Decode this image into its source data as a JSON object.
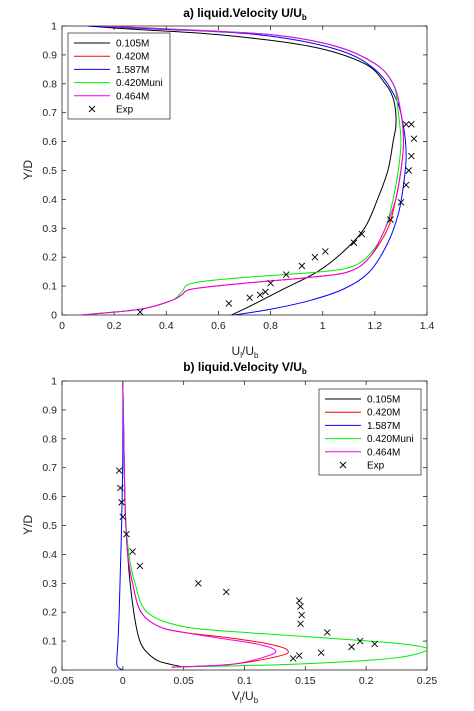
{
  "chart_data": [
    {
      "type": "line",
      "title": "a) liquid.Velocity U/U",
      "title_sub": "b",
      "xlabel": "U",
      "xlabel_sub1": "l",
      "xlabel_mid": "/U",
      "xlabel_sub2": "b",
      "ylabel": "Y/D",
      "xlim": [
        0,
        1.4
      ],
      "ylim": [
        0,
        1
      ],
      "xticks": [
        0,
        0.2,
        0.4,
        0.6,
        0.8,
        1,
        1.2,
        1.4
      ],
      "xtick_labels": [
        "0",
        "0.2",
        "0.4",
        "0.6",
        "0.8",
        "1",
        "1.2",
        "1.4"
      ],
      "yticks": [
        0,
        0.1,
        0.2,
        0.3,
        0.4,
        0.5,
        0.6,
        0.7,
        0.8,
        0.9,
        1
      ],
      "ytick_labels": [
        "0",
        "0.1",
        "0.2",
        "0.3",
        "0.4",
        "0.5",
        "0.6",
        "0.7",
        "0.8",
        "0.9",
        "1"
      ],
      "legend_position": "top-left",
      "series": [
        {
          "name": "0.105M",
          "color": "#000000",
          "x": [
            0.65,
            0.72,
            0.85,
            0.98,
            1.08,
            1.16,
            1.21,
            1.25,
            1.27,
            1.28,
            1.28,
            1.27,
            1.24,
            1.16,
            0.95,
            0.6,
            0.25,
            0.1
          ],
          "y": [
            0,
            0.03,
            0.09,
            0.15,
            0.22,
            0.3,
            0.4,
            0.5,
            0.6,
            0.65,
            0.7,
            0.75,
            0.8,
            0.87,
            0.93,
            0.97,
            0.99,
            1
          ]
        },
        {
          "name": "0.420M",
          "color": "#ff0000",
          "x": [
            0.07,
            0.3,
            0.42,
            0.46,
            0.5,
            0.7,
            0.95,
            1.1,
            1.18,
            1.25,
            1.28,
            1.3,
            1.31,
            1.3,
            1.27,
            1.2,
            1.05,
            0.8,
            0.4,
            0.15
          ],
          "y": [
            0,
            0.02,
            0.05,
            0.07,
            0.09,
            0.11,
            0.13,
            0.15,
            0.2,
            0.3,
            0.4,
            0.5,
            0.6,
            0.7,
            0.8,
            0.87,
            0.93,
            0.97,
            0.99,
            1
          ]
        },
        {
          "name": "1.587M",
          "color": "#0000ff",
          "x": [
            0.66,
            0.8,
            0.95,
            1.08,
            1.18,
            1.25,
            1.29,
            1.31,
            1.32,
            1.31,
            1.28,
            1.2,
            1.05,
            0.75,
            0.35,
            0.1
          ],
          "y": [
            0,
            0.02,
            0.05,
            0.09,
            0.15,
            0.25,
            0.35,
            0.45,
            0.55,
            0.65,
            0.75,
            0.85,
            0.92,
            0.97,
            0.99,
            1
          ]
        },
        {
          "name": "0.420Muni",
          "color": "#00ee00",
          "x": [
            0.07,
            0.3,
            0.42,
            0.46,
            0.5,
            0.7,
            1.0,
            1.12,
            1.19,
            1.24,
            1.27,
            1.29,
            1.3,
            1.29,
            1.27,
            1.2,
            1.05,
            0.8,
            0.4,
            0.15
          ],
          "y": [
            0,
            0.02,
            0.05,
            0.08,
            0.11,
            0.13,
            0.15,
            0.17,
            0.22,
            0.3,
            0.4,
            0.5,
            0.6,
            0.7,
            0.8,
            0.87,
            0.93,
            0.97,
            0.99,
            1
          ]
        },
        {
          "name": "0.464M",
          "color": "#ee00ee",
          "x": [
            0.07,
            0.3,
            0.42,
            0.46,
            0.5,
            0.7,
            0.95,
            1.1,
            1.18,
            1.24,
            1.28,
            1.3,
            1.31,
            1.3,
            1.27,
            1.2,
            1.05,
            0.8,
            0.4,
            0.15
          ],
          "y": [
            0,
            0.02,
            0.05,
            0.07,
            0.09,
            0.11,
            0.13,
            0.15,
            0.2,
            0.3,
            0.4,
            0.5,
            0.6,
            0.7,
            0.8,
            0.87,
            0.93,
            0.97,
            0.99,
            1
          ]
        },
        {
          "name": "Exp",
          "color": "#000000",
          "marker": "x",
          "x": [
            0.3,
            0.64,
            0.72,
            0.76,
            0.78,
            0.8,
            0.86,
            0.92,
            0.97,
            1.01,
            1.12,
            1.15,
            1.26,
            1.3,
            1.32,
            1.33,
            1.34,
            1.35,
            1.34,
            1.32
          ],
          "y": [
            0.01,
            0.04,
            0.06,
            0.07,
            0.08,
            0.11,
            0.14,
            0.17,
            0.2,
            0.22,
            0.25,
            0.28,
            0.33,
            0.39,
            0.45,
            0.5,
            0.55,
            0.61,
            0.66,
            0.66
          ]
        }
      ]
    },
    {
      "type": "line",
      "title": "b) liquid.Velocity V/U",
      "title_sub": "b",
      "xlabel": "V",
      "xlabel_sub1": "l",
      "xlabel_mid": "/U",
      "xlabel_sub2": "b",
      "ylabel": "Y/D",
      "xlim": [
        -0.05,
        0.25
      ],
      "ylim": [
        0,
        1
      ],
      "xticks": [
        -0.05,
        0,
        0.05,
        0.1,
        0.15,
        0.2,
        0.25
      ],
      "xtick_labels": [
        "-0.05",
        "0",
        "0.05",
        "0.1",
        "0.15",
        "0.2",
        "0.25"
      ],
      "yticks": [
        0,
        0.1,
        0.2,
        0.3,
        0.4,
        0.5,
        0.6,
        0.7,
        0.8,
        0.9,
        1
      ],
      "ytick_labels": [
        "0",
        "0.1",
        "0.2",
        "0.3",
        "0.4",
        "0.5",
        "0.6",
        "0.7",
        "0.8",
        "0.9",
        "1"
      ],
      "legend_position": "top-right",
      "series": [
        {
          "name": "0.105M",
          "color": "#000000",
          "x": [
            0.05,
            0.03,
            0.02,
            0.015,
            0.012,
            0.009,
            0.006,
            0.004,
            0.002,
            0.001,
            0
          ],
          "y": [
            0.01,
            0.03,
            0.06,
            0.09,
            0.13,
            0.2,
            0.3,
            0.4,
            0.55,
            0.75,
            1
          ]
        },
        {
          "name": "0.420M",
          "color": "#ff0000",
          "x": [
            0.04,
            0.09,
            0.13,
            0.135,
            0.12,
            0.09,
            0.05,
            0.03,
            0.015,
            0.008,
            0.004,
            0.002,
            0.001,
            0
          ],
          "y": [
            0.01,
            0.02,
            0.05,
            0.07,
            0.09,
            0.11,
            0.13,
            0.15,
            0.2,
            0.3,
            0.4,
            0.55,
            0.75,
            1
          ]
        },
        {
          "name": "1.587M",
          "color": "#0000ff",
          "x": [
            0,
            -0.004,
            -0.005,
            -0.004,
            -0.003,
            -0.002,
            -0.001,
            0,
            0
          ],
          "y": [
            0,
            0.01,
            0.03,
            0.1,
            0.2,
            0.35,
            0.5,
            0.75,
            1
          ]
        },
        {
          "name": "0.420Muni",
          "color": "#00ee00",
          "x": [
            0.04,
            0.14,
            0.22,
            0.25,
            0.23,
            0.17,
            0.1,
            0.05,
            0.02,
            0.01,
            0.005,
            0.002,
            0.001,
            0
          ],
          "y": [
            0.01,
            0.02,
            0.04,
            0.07,
            0.09,
            0.11,
            0.13,
            0.15,
            0.2,
            0.3,
            0.4,
            0.55,
            0.75,
            1
          ]
        },
        {
          "name": "0.464M",
          "color": "#ee00ee",
          "x": [
            0.04,
            0.09,
            0.12,
            0.125,
            0.11,
            0.08,
            0.05,
            0.03,
            0.015,
            0.008,
            0.004,
            0.002,
            0.001,
            0
          ],
          "y": [
            0.01,
            0.02,
            0.05,
            0.07,
            0.09,
            0.11,
            0.13,
            0.15,
            0.2,
            0.3,
            0.4,
            0.55,
            0.75,
            1
          ]
        },
        {
          "name": "Exp",
          "color": "#000000",
          "marker": "x",
          "x": [
            -0.003,
            -0.002,
            -0.001,
            0.0,
            0.003,
            0.008,
            0.014,
            0.062,
            0.085,
            0.145,
            0.146,
            0.147,
            0.146,
            0.168,
            0.195,
            0.207,
            0.188,
            0.163,
            0.145,
            0.14
          ],
          "y": [
            0.69,
            0.63,
            0.58,
            0.53,
            0.47,
            0.41,
            0.36,
            0.3,
            0.27,
            0.24,
            0.22,
            0.19,
            0.16,
            0.13,
            0.1,
            0.09,
            0.08,
            0.06,
            0.05,
            0.04
          ]
        }
      ]
    }
  ]
}
